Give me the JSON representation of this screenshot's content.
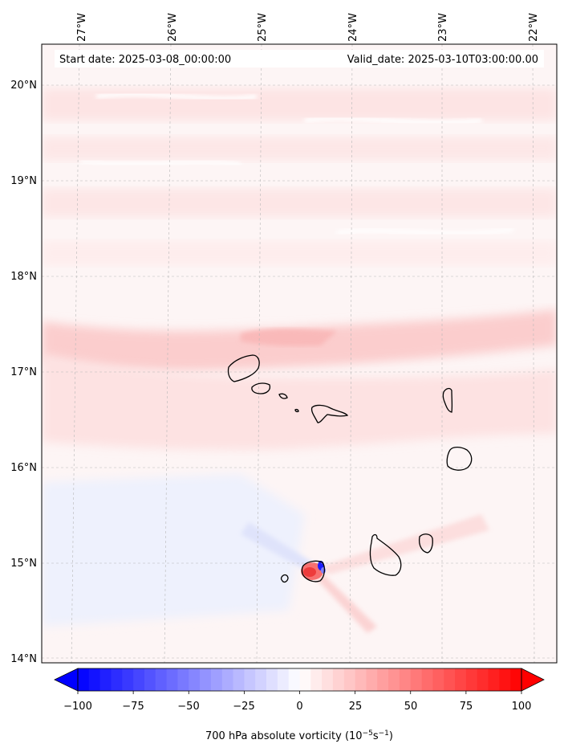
{
  "header": {
    "start_date": "Start date: 2025-03-08_00:00:00",
    "valid_date": "Valid_date: 2025-03-10T03:00:00.00"
  },
  "axes": {
    "lon_labels": [
      "27°W",
      "26°W",
      "25°W",
      "24°W",
      "23°W",
      "22°W"
    ],
    "lat_labels": [
      "20°N",
      "19°N",
      "18°N",
      "17°N",
      "16°N",
      "15°N",
      "14°N"
    ]
  },
  "colorbar": {
    "ticks": [
      "−100",
      "−75",
      "−50",
      "−25",
      "0",
      "25",
      "50",
      "75",
      "100"
    ],
    "label": "700 hPa absolute vorticity (10",
    "label_exp1": "−5",
    "label_mid": "s",
    "label_exp2": "−1",
    "label_end": ")",
    "min": -100,
    "max": 100,
    "neg_color": "#0000ff",
    "pos_color": "#ff0000"
  },
  "colors": {
    "grid": "#b0b0b0",
    "coast": "#000000",
    "background_tint": "#fdf3f3"
  }
}
